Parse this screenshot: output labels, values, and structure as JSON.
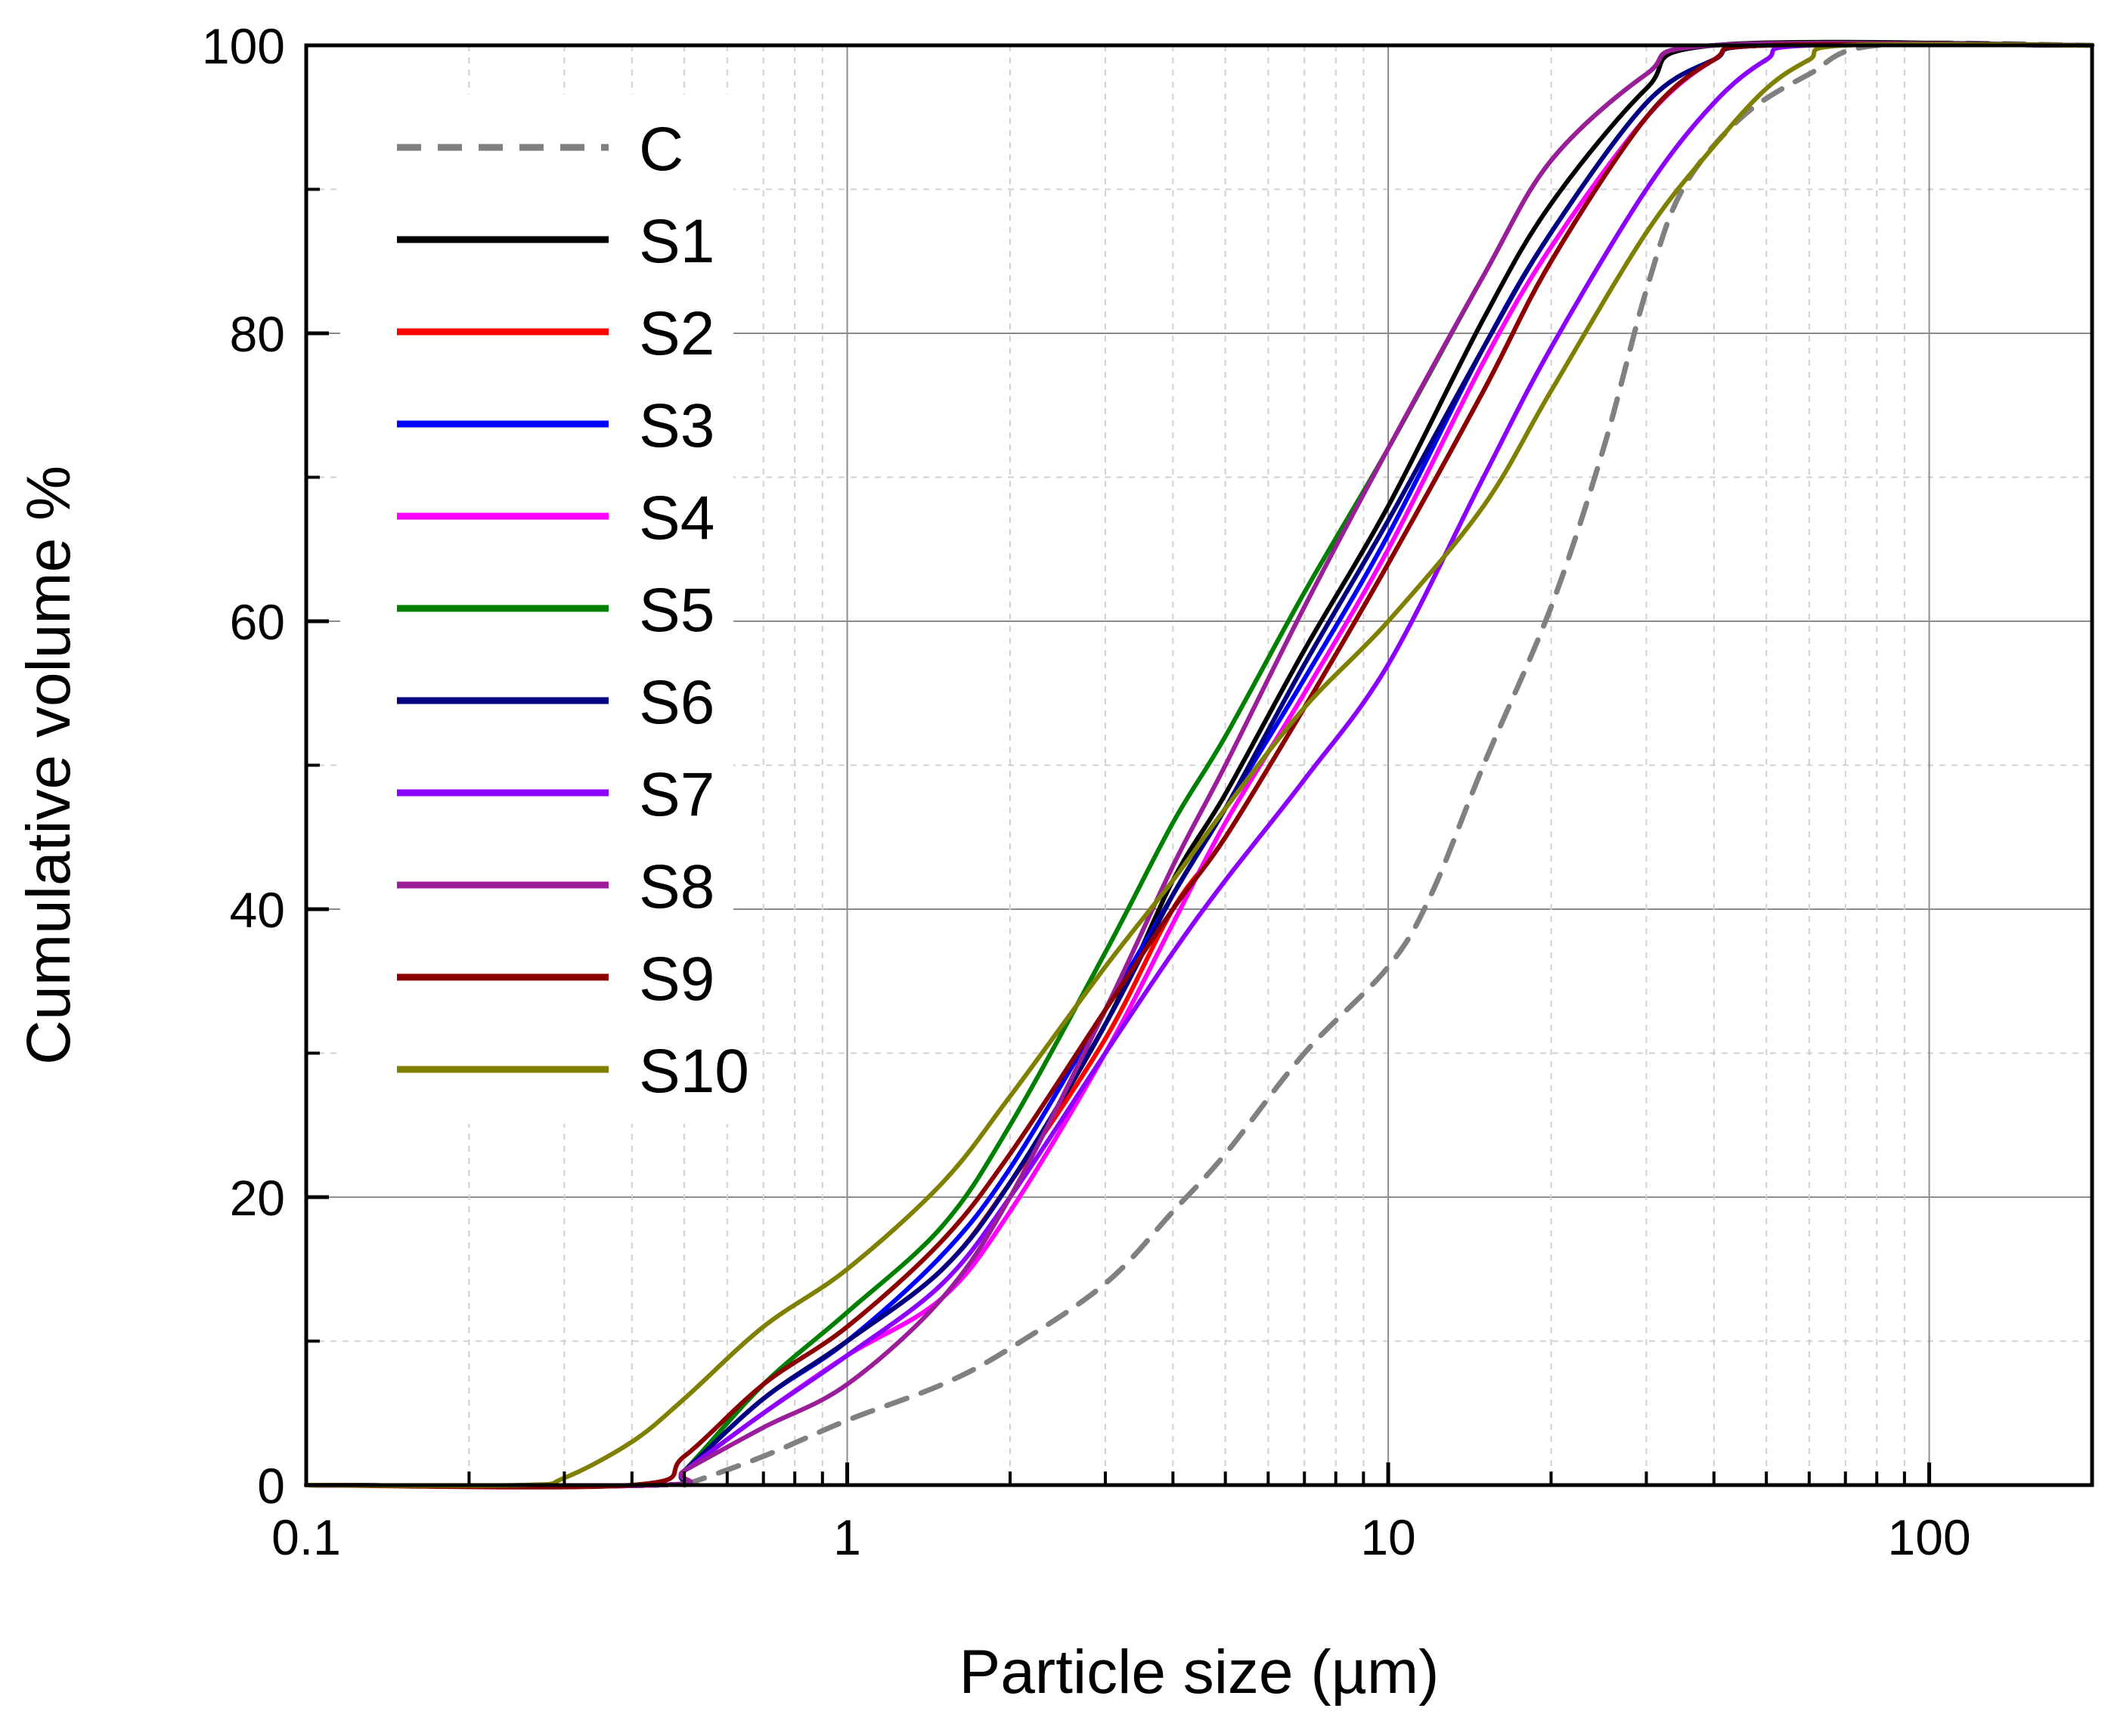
{
  "chart_data": {
    "type": "line",
    "title": "",
    "xlabel": "Particle size (µm)",
    "ylabel": "Cumulative volume %",
    "xscale": "log",
    "xlim": [
      0.1,
      200
    ],
    "ylim": [
      0,
      100
    ],
    "grid": true,
    "legend_position": "top-left",
    "x_ticks": [
      0.1,
      1,
      10,
      100
    ],
    "x_tick_labels": [
      "0.1",
      "1",
      "10",
      "100"
    ],
    "y_ticks": [
      0,
      20,
      40,
      60,
      80,
      100
    ],
    "y_tick_labels": [
      "0",
      "20",
      "40",
      "60",
      "80",
      "100"
    ],
    "series": [
      {
        "name": "C",
        "color": "#808080",
        "dashed": true,
        "points": [
          [
            0.5,
            0
          ],
          [
            0.7,
            2
          ],
          [
            1,
            4.5
          ],
          [
            1.5,
            7
          ],
          [
            2,
            9.5
          ],
          [
            3,
            14
          ],
          [
            4,
            19
          ],
          [
            5,
            23
          ],
          [
            7,
            30
          ],
          [
            10,
            36
          ],
          [
            12,
            41
          ],
          [
            15,
            50
          ],
          [
            20,
            61
          ],
          [
            25,
            72
          ],
          [
            30,
            83
          ],
          [
            35,
            90
          ],
          [
            45,
            95
          ],
          [
            60,
            98
          ],
          [
            80,
            100
          ],
          [
            200,
            100
          ]
        ]
      },
      {
        "name": "S1",
        "color": "#000000",
        "dashed": false,
        "points": [
          [
            0.1,
            0
          ],
          [
            0.45,
            0
          ],
          [
            0.5,
            1
          ],
          [
            0.7,
            6
          ],
          [
            1,
            10
          ],
          [
            1.5,
            15
          ],
          [
            2,
            21
          ],
          [
            3,
            32
          ],
          [
            4,
            42
          ],
          [
            5,
            48
          ],
          [
            7,
            58
          ],
          [
            10,
            68
          ],
          [
            15,
            81
          ],
          [
            20,
            89
          ],
          [
            30,
            97
          ],
          [
            40,
            100
          ],
          [
            200,
            100
          ]
        ]
      },
      {
        "name": "S2",
        "color": "#ff0000",
        "dashed": false,
        "points": [
          [
            0.1,
            0
          ],
          [
            0.45,
            0
          ],
          [
            0.5,
            1
          ],
          [
            0.7,
            6
          ],
          [
            1,
            10
          ],
          [
            1.5,
            15
          ],
          [
            2,
            21
          ],
          [
            3,
            31
          ],
          [
            4,
            40
          ],
          [
            5,
            45
          ],
          [
            7,
            54
          ],
          [
            10,
            64
          ],
          [
            15,
            76
          ],
          [
            20,
            85
          ],
          [
            30,
            95
          ],
          [
            40,
            99
          ],
          [
            50,
            100
          ],
          [
            200,
            100
          ]
        ]
      },
      {
        "name": "S3",
        "color": "#0000ff",
        "dashed": false,
        "points": [
          [
            0.1,
            0
          ],
          [
            0.45,
            0
          ],
          [
            0.5,
            1
          ],
          [
            0.7,
            6
          ],
          [
            1,
            10
          ],
          [
            1.5,
            16
          ],
          [
            2,
            22
          ],
          [
            3,
            33
          ],
          [
            4,
            41
          ],
          [
            5,
            47
          ],
          [
            7,
            56
          ],
          [
            10,
            66
          ],
          [
            15,
            79
          ],
          [
            20,
            87
          ],
          [
            30,
            96
          ],
          [
            40,
            99
          ],
          [
            50,
            100
          ],
          [
            200,
            100
          ]
        ]
      },
      {
        "name": "S4",
        "color": "#ff00ff",
        "dashed": false,
        "points": [
          [
            0.1,
            0
          ],
          [
            0.45,
            0
          ],
          [
            0.5,
            1
          ],
          [
            0.7,
            5
          ],
          [
            1,
            9
          ],
          [
            1.5,
            13
          ],
          [
            2,
            19
          ],
          [
            3,
            30
          ],
          [
            4,
            39
          ],
          [
            5,
            46
          ],
          [
            7,
            55
          ],
          [
            10,
            65
          ],
          [
            15,
            78
          ],
          [
            20,
            86
          ],
          [
            30,
            95
          ],
          [
            40,
            99
          ],
          [
            50,
            100
          ],
          [
            200,
            100
          ]
        ]
      },
      {
        "name": "S5",
        "color": "#008000",
        "dashed": false,
        "points": [
          [
            0.1,
            0
          ],
          [
            0.45,
            0
          ],
          [
            0.5,
            1
          ],
          [
            0.7,
            7
          ],
          [
            1,
            12
          ],
          [
            1.5,
            18
          ],
          [
            2,
            25
          ],
          [
            3,
            37
          ],
          [
            4,
            46
          ],
          [
            5,
            52
          ],
          [
            7,
            62
          ],
          [
            10,
            72
          ],
          [
            15,
            84
          ],
          [
            20,
            92
          ],
          [
            30,
            98
          ],
          [
            40,
            100
          ],
          [
            200,
            100
          ]
        ]
      },
      {
        "name": "S6",
        "color": "#000080",
        "dashed": false,
        "points": [
          [
            0.1,
            0
          ],
          [
            0.45,
            0
          ],
          [
            0.5,
            1
          ],
          [
            0.7,
            6
          ],
          [
            1,
            10
          ],
          [
            1.5,
            15
          ],
          [
            2,
            21
          ],
          [
            3,
            32
          ],
          [
            4,
            41
          ],
          [
            5,
            47
          ],
          [
            7,
            57
          ],
          [
            10,
            67
          ],
          [
            15,
            79
          ],
          [
            20,
            87
          ],
          [
            30,
            96
          ],
          [
            40,
            99
          ],
          [
            50,
            100
          ],
          [
            200,
            100
          ]
        ]
      },
      {
        "name": "S7",
        "color": "#8b00ff",
        "dashed": false,
        "points": [
          [
            0.1,
            0
          ],
          [
            0.45,
            0
          ],
          [
            0.5,
            1
          ],
          [
            0.7,
            5
          ],
          [
            1,
            9
          ],
          [
            1.5,
            14
          ],
          [
            2,
            20
          ],
          [
            3,
            30
          ],
          [
            4,
            37
          ],
          [
            5,
            42
          ],
          [
            7,
            49
          ],
          [
            10,
            57
          ],
          [
            15,
            70
          ],
          [
            20,
            79
          ],
          [
            30,
            90
          ],
          [
            40,
            96
          ],
          [
            50,
            99
          ],
          [
            60,
            100
          ],
          [
            200,
            100
          ]
        ]
      },
      {
        "name": "S8",
        "color": "#9a1e9a",
        "dashed": false,
        "points": [
          [
            0.1,
            0
          ],
          [
            0.45,
            0
          ],
          [
            0.5,
            1
          ],
          [
            0.7,
            4
          ],
          [
            1,
            7
          ],
          [
            1.5,
            13
          ],
          [
            2,
            20
          ],
          [
            3,
            33
          ],
          [
            4,
            43
          ],
          [
            5,
            50
          ],
          [
            7,
            61
          ],
          [
            10,
            72
          ],
          [
            15,
            84
          ],
          [
            20,
            92
          ],
          [
            30,
            98
          ],
          [
            40,
            100
          ],
          [
            200,
            100
          ]
        ]
      },
      {
        "name": "S9",
        "color": "#8b0000",
        "dashed": false,
        "points": [
          [
            0.1,
            0
          ],
          [
            0.4,
            0
          ],
          [
            0.5,
            2
          ],
          [
            0.7,
            7
          ],
          [
            1,
            11
          ],
          [
            1.5,
            17
          ],
          [
            2,
            23
          ],
          [
            3,
            33
          ],
          [
            4,
            40
          ],
          [
            5,
            45
          ],
          [
            7,
            54
          ],
          [
            10,
            64
          ],
          [
            15,
            76
          ],
          [
            20,
            85
          ],
          [
            30,
            95
          ],
          [
            40,
            99
          ],
          [
            50,
            100
          ],
          [
            200,
            100
          ]
        ]
      },
      {
        "name": "S10",
        "color": "#808000",
        "dashed": false,
        "points": [
          [
            0.1,
            0
          ],
          [
            0.25,
            0
          ],
          [
            0.3,
            0.5
          ],
          [
            0.4,
            3
          ],
          [
            0.5,
            6
          ],
          [
            0.7,
            11
          ],
          [
            1,
            15
          ],
          [
            1.5,
            21
          ],
          [
            2,
            27
          ],
          [
            3,
            36
          ],
          [
            4,
            42
          ],
          [
            5,
            47
          ],
          [
            7,
            54
          ],
          [
            10,
            60
          ],
          [
            15,
            68
          ],
          [
            20,
            76
          ],
          [
            30,
            87
          ],
          [
            40,
            93
          ],
          [
            50,
            97
          ],
          [
            60,
            99
          ],
          [
            70,
            100
          ],
          [
            200,
            100
          ]
        ]
      }
    ]
  }
}
